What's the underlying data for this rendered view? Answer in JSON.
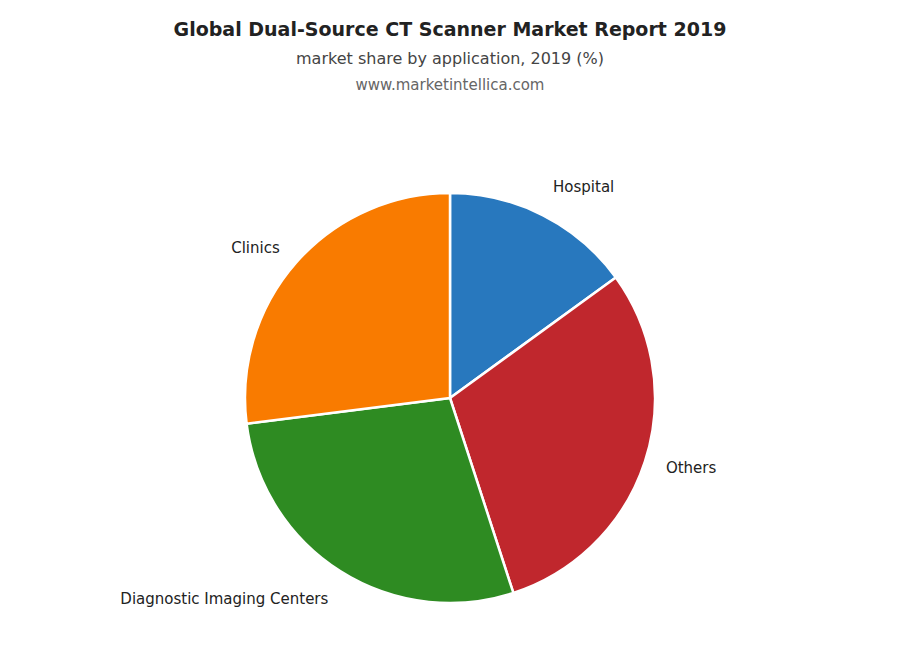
{
  "chart_data": {
    "type": "pie",
    "title": "Global Dual-Source CT Scanner Market Report 2019",
    "subtitle": "market share by application, 2019 (%)",
    "annotations": [
      "www.marketintellica.com"
    ],
    "categories": [
      "Hospital",
      "Others",
      "Diagnostic Imaging Centers",
      "Clinics"
    ],
    "values": [
      15,
      30,
      28,
      27
    ],
    "colors": [
      "#2878BE",
      "#C0272D",
      "#2E8B22",
      "#F97B00"
    ]
  }
}
